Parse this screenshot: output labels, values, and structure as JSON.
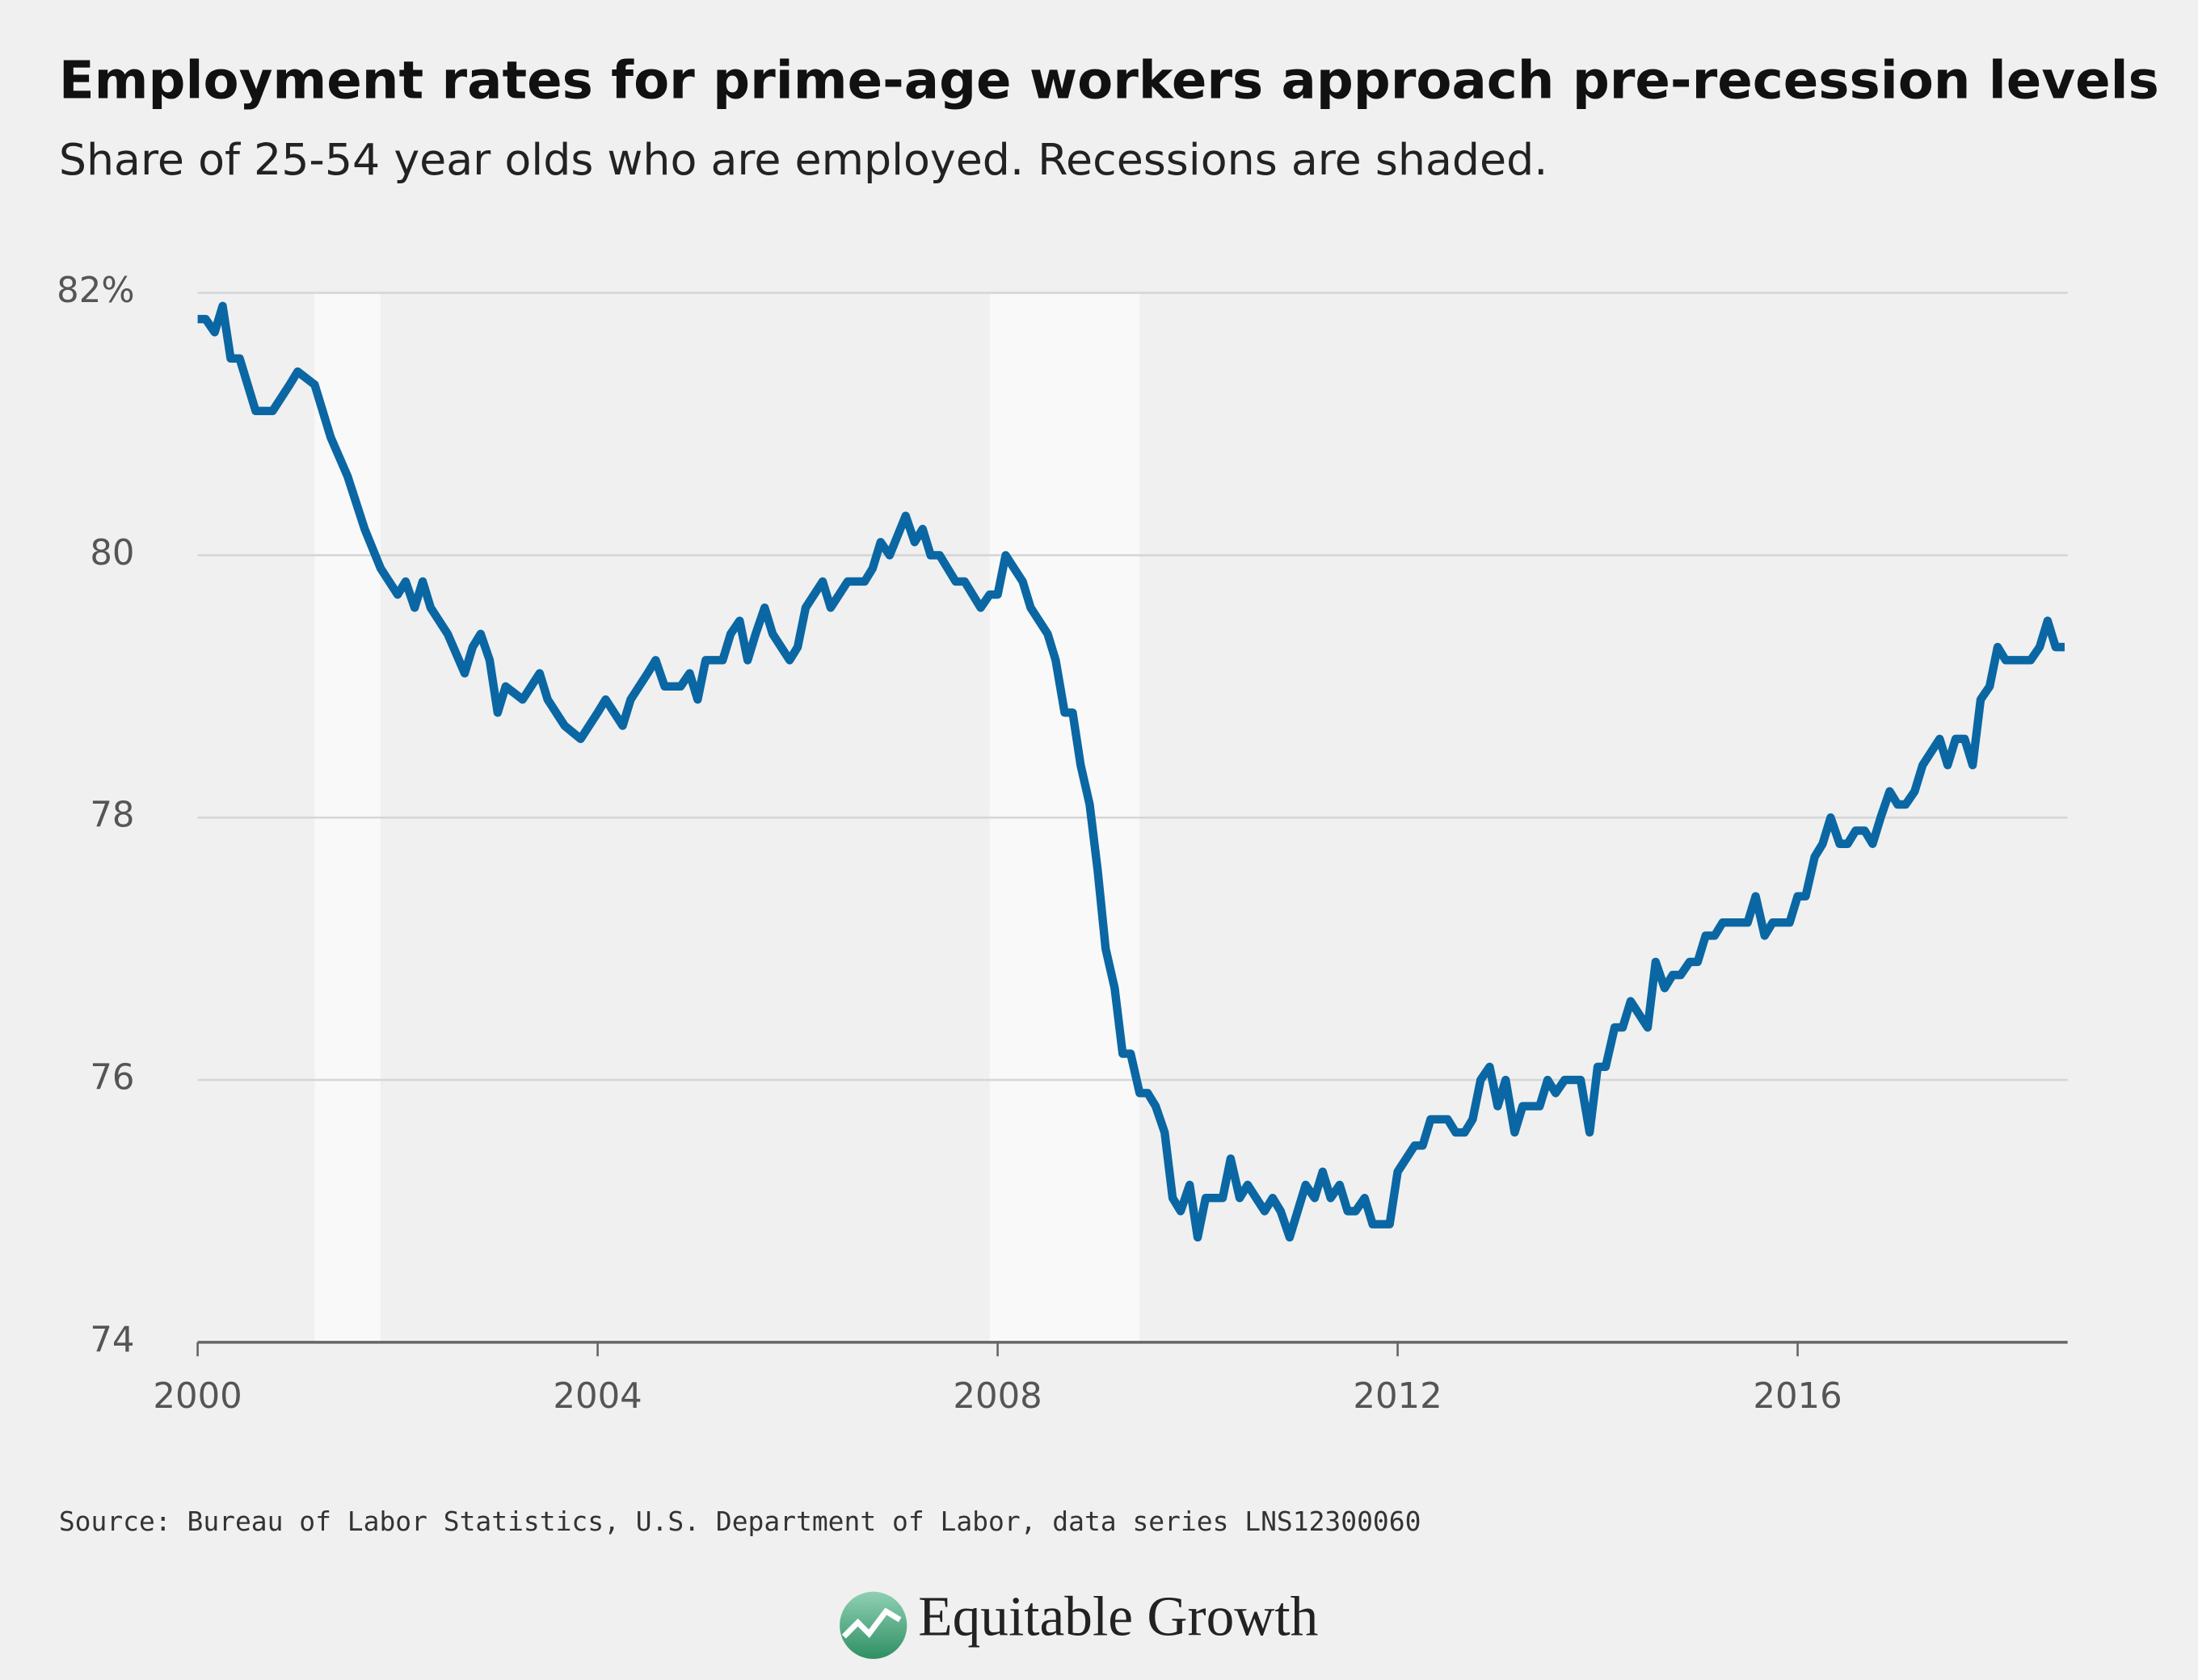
{
  "chart_data": {
    "type": "line",
    "title": "Employment rates for prime-age workers approach pre-recession levels",
    "subtitle": "Share of 25-54 year olds who are employed. Recessions are shaded.",
    "source": "Source: Bureau of Labor Statistics, U.S. Department of Labor, data series LNS12300060",
    "logo": "Equitable Growth",
    "color": "#0a67a3",
    "shaded_regions": [
      [
        2001.17,
        2001.83
      ],
      [
        2007.92,
        2009.42
      ]
    ],
    "shade_color": "#f9f9f9",
    "grid": true,
    "xlim": [
      2000,
      2018.7
    ],
    "xticks": [
      2000,
      2004,
      2008,
      2012,
      2016
    ],
    "ylim": [
      74,
      82
    ],
    "yticks": [
      74,
      76,
      78,
      80,
      {
        "value": 82,
        "label": "82%"
      }
    ],
    "x": [
      2000.0,
      2000.08,
      2000.17,
      2000.25,
      2000.33,
      2000.42,
      2000.58,
      2000.75,
      2000.92,
      2001.0,
      2001.17,
      2001.33,
      2001.5,
      2001.67,
      2001.83,
      2002.0,
      2002.08,
      2002.17,
      2002.25,
      2002.33,
      2002.5,
      2002.67,
      2002.75,
      2002.83,
      2002.92,
      2003.0,
      2003.08,
      2003.25,
      2003.42,
      2003.5,
      2003.67,
      2003.83,
      2004.0,
      2004.08,
      2004.25,
      2004.33,
      2004.5,
      2004.58,
      2004.67,
      2004.83,
      2004.92,
      2005.0,
      2005.08,
      2005.25,
      2005.33,
      2005.42,
      2005.5,
      2005.58,
      2005.67,
      2005.75,
      2005.92,
      2006.0,
      2006.08,
      2006.25,
      2006.33,
      2006.5,
      2006.67,
      2006.75,
      2006.83,
      2006.92,
      2007.08,
      2007.17,
      2007.25,
      2007.33,
      2007.42,
      2007.58,
      2007.67,
      2007.83,
      2007.92,
      2008.0,
      2008.08,
      2008.25,
      2008.33,
      2008.5,
      2008.58,
      2008.67,
      2008.75,
      2008.83,
      2008.92,
      2009.0,
      2009.08,
      2009.17,
      2009.25,
      2009.33,
      2009.42,
      2009.5,
      2009.58,
      2009.67,
      2009.75,
      2009.83,
      2009.92,
      2010.0,
      2010.08,
      2010.25,
      2010.33,
      2010.42,
      2010.5,
      2010.67,
      2010.75,
      2010.83,
      2010.92,
      2011.08,
      2011.17,
      2011.25,
      2011.33,
      2011.42,
      2011.5,
      2011.58,
      2011.67,
      2011.75,
      2011.92,
      2012.0,
      2012.17,
      2012.25,
      2012.33,
      2012.5,
      2012.58,
      2012.67,
      2012.75,
      2012.83,
      2012.92,
      2013.0,
      2013.08,
      2013.17,
      2013.25,
      2013.42,
      2013.5,
      2013.58,
      2013.67,
      2013.83,
      2013.92,
      2014.0,
      2014.08,
      2014.17,
      2014.25,
      2014.33,
      2014.5,
      2014.58,
      2014.67,
      2014.75,
      2014.83,
      2014.92,
      2015.0,
      2015.08,
      2015.17,
      2015.25,
      2015.5,
      2015.58,
      2015.67,
      2015.75,
      2015.92,
      2016.0,
      2016.08,
      2016.17,
      2016.25,
      2016.33,
      2016.42,
      2016.5,
      2016.58,
      2016.67,
      2016.75,
      2016.83,
      2016.92,
      2017.0,
      2017.08,
      2017.17,
      2017.25,
      2017.42,
      2017.5,
      2017.58,
      2017.67,
      2017.75,
      2017.83,
      2017.92,
      2018.0,
      2018.08,
      2018.33,
      2018.42,
      2018.5,
      2018.58,
      2018.67
    ],
    "values": [
      81.8,
      81.8,
      81.7,
      81.9,
      81.5,
      81.5,
      81.1,
      81.1,
      81.3,
      81.4,
      81.3,
      80.9,
      80.6,
      80.2,
      79.9,
      79.7,
      79.8,
      79.6,
      79.8,
      79.6,
      79.4,
      79.1,
      79.3,
      79.4,
      79.2,
      78.8,
      79.0,
      78.9,
      79.1,
      78.9,
      78.7,
      78.6,
      78.8,
      78.9,
      78.7,
      78.9,
      79.1,
      79.2,
      79.0,
      79.0,
      79.1,
      78.9,
      79.2,
      79.2,
      79.4,
      79.5,
      79.2,
      79.4,
      79.6,
      79.4,
      79.2,
      79.3,
      79.6,
      79.8,
      79.6,
      79.8,
      79.8,
      79.9,
      80.1,
      80.0,
      80.3,
      80.1,
      80.2,
      80.0,
      80.0,
      79.8,
      79.8,
      79.6,
      79.7,
      79.7,
      80.0,
      79.8,
      79.6,
      79.4,
      79.2,
      78.8,
      78.8,
      78.4,
      78.1,
      77.6,
      77.0,
      76.7,
      76.2,
      76.2,
      75.9,
      75.9,
      75.8,
      75.6,
      75.1,
      75.0,
      75.2,
      74.8,
      75.1,
      75.1,
      75.4,
      75.1,
      75.2,
      75.0,
      75.1,
      75.0,
      74.8,
      75.2,
      75.1,
      75.3,
      75.1,
      75.2,
      75.0,
      75.0,
      75.1,
      74.9,
      74.9,
      75.3,
      75.5,
      75.5,
      75.7,
      75.7,
      75.6,
      75.6,
      75.7,
      76.0,
      76.1,
      75.8,
      76.0,
      75.6,
      75.8,
      75.8,
      76.0,
      75.9,
      76.0,
      76.0,
      75.6,
      76.1,
      76.1,
      76.4,
      76.4,
      76.6,
      76.4,
      76.9,
      76.7,
      76.8,
      76.8,
      76.9,
      76.9,
      77.1,
      77.1,
      77.2,
      77.2,
      77.4,
      77.1,
      77.2,
      77.2,
      77.4,
      77.4,
      77.7,
      77.8,
      78.0,
      77.8,
      77.8,
      77.9,
      77.9,
      77.8,
      78.0,
      78.2,
      78.1,
      78.1,
      78.2,
      78.4,
      78.6,
      78.4,
      78.6,
      78.6,
      78.4,
      78.9,
      79.0,
      79.3,
      79.2,
      79.2,
      79.3,
      79.5,
      79.3,
      79.3
    ]
  }
}
